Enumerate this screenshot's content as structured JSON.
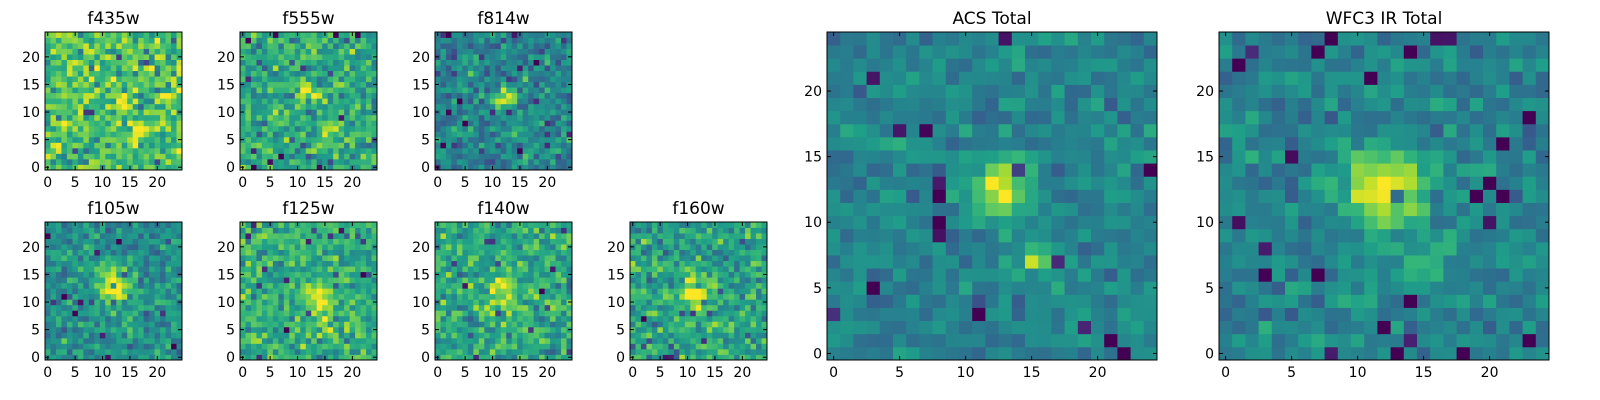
{
  "chart_data": {
    "type": "heatmap",
    "colormap": "viridis",
    "colors": {
      "viridis_stops": [
        "#440154",
        "#482878",
        "#3e4989",
        "#31688e",
        "#26828e",
        "#1f9e89",
        "#35b779",
        "#6ece58",
        "#b5de2b",
        "#fde725"
      ]
    },
    "panels": [
      {
        "title": "f435w",
        "size": "small",
        "shape": [
          25,
          25
        ],
        "xlim": [
          -0.5,
          24.5
        ],
        "ylim": [
          -0.5,
          24.5
        ],
        "xticks": [
          "0",
          "5",
          "10",
          "15",
          "20"
        ],
        "yticks": [
          "0",
          "5",
          "10",
          "15",
          "20"
        ],
        "background": 0.72,
        "noise": 0.16,
        "sources": [
          {
            "x": 13.5,
            "y": 12.5,
            "peak": 0.35,
            "sigma": 1.0
          },
          {
            "x": 17,
            "y": 7,
            "peak": 0.25,
            "sigma": 1.0
          }
        ],
        "seed": 11
      },
      {
        "title": "f555w",
        "size": "small",
        "shape": [
          25,
          25
        ],
        "xlim": [
          -0.5,
          24.5
        ],
        "ylim": [
          -0.5,
          24.5
        ],
        "xticks": [
          "0",
          "5",
          "10",
          "15",
          "20"
        ],
        "yticks": [
          "0",
          "5",
          "10",
          "15",
          "20"
        ],
        "background": 0.6,
        "noise": 0.15,
        "sources": [
          {
            "x": 12.5,
            "y": 13,
            "peak": 0.45,
            "sigma": 1.2
          },
          {
            "x": 15.5,
            "y": 7,
            "peak": 0.3,
            "sigma": 1.0
          }
        ],
        "seed": 22
      },
      {
        "title": "f814w",
        "size": "small",
        "shape": [
          25,
          25
        ],
        "xlim": [
          -0.5,
          24.5
        ],
        "ylim": [
          -0.5,
          24.5
        ],
        "xticks": [
          "0",
          "5",
          "10",
          "15",
          "20"
        ],
        "yticks": [
          "0",
          "5",
          "10",
          "15",
          "20"
        ],
        "background": 0.45,
        "noise": 0.15,
        "sources": [
          {
            "x": 12.5,
            "y": 12.5,
            "peak": 0.6,
            "sigma": 1.3
          },
          {
            "x": 15,
            "y": 7,
            "peak": 0.25,
            "sigma": 1.0
          }
        ],
        "seed": 33
      },
      {
        "title": "f105w",
        "size": "small",
        "shape": [
          25,
          25
        ],
        "xlim": [
          -0.5,
          24.5
        ],
        "ylim": [
          -0.5,
          24.5
        ],
        "xticks": [
          "0",
          "5",
          "10",
          "15",
          "20"
        ],
        "yticks": [
          "0",
          "5",
          "10",
          "15",
          "20"
        ],
        "background": 0.5,
        "noise": 0.12,
        "sources": [
          {
            "x": 12,
            "y": 13,
            "peak": 0.5,
            "sigma": 2.2
          },
          {
            "x": 15,
            "y": 7,
            "peak": 0.2,
            "sigma": 1.2
          }
        ],
        "seed": 44
      },
      {
        "title": "f125w",
        "size": "small",
        "shape": [
          25,
          25
        ],
        "xlim": [
          -0.5,
          24.5
        ],
        "ylim": [
          -0.5,
          24.5
        ],
        "xticks": [
          "0",
          "5",
          "10",
          "15",
          "20"
        ],
        "yticks": [
          "0",
          "5",
          "10",
          "15",
          "20"
        ],
        "background": 0.62,
        "noise": 0.14,
        "sources": [
          {
            "x": 14,
            "y": 10.5,
            "peak": 0.4,
            "sigma": 2.0
          },
          {
            "x": 15,
            "y": 6,
            "peak": 0.2,
            "sigma": 1.2
          }
        ],
        "seed": 55
      },
      {
        "title": "f140w",
        "size": "small",
        "shape": [
          25,
          25
        ],
        "xlim": [
          -0.5,
          24.5
        ],
        "ylim": [
          -0.5,
          24.5
        ],
        "xticks": [
          "0",
          "5",
          "10",
          "15",
          "20"
        ],
        "yticks": [
          "0",
          "5",
          "10",
          "15",
          "20"
        ],
        "background": 0.6,
        "noise": 0.14,
        "sources": [
          {
            "x": 12,
            "y": 12,
            "peak": 0.3,
            "sigma": 2.0
          }
        ],
        "seed": 66
      },
      {
        "title": "f160w",
        "size": "small",
        "shape": [
          25,
          25
        ],
        "xlim": [
          -0.5,
          24.5
        ],
        "ylim": [
          -0.5,
          24.5
        ],
        "xticks": [
          "0",
          "5",
          "10",
          "15",
          "20"
        ],
        "yticks": [
          "0",
          "5",
          "10",
          "15",
          "20"
        ],
        "background": 0.58,
        "noise": 0.15,
        "sources": [
          {
            "x": 11.5,
            "y": 12,
            "peak": 0.35,
            "sigma": 2.0
          }
        ],
        "seed": 77
      },
      {
        "title": "ACS Total",
        "size": "large",
        "shape": [
          25,
          25
        ],
        "xlim": [
          -0.5,
          24.5
        ],
        "ylim": [
          -0.5,
          24.5
        ],
        "xticks": [
          "0",
          "5",
          "10",
          "15",
          "20"
        ],
        "yticks": [
          "0",
          "5",
          "10",
          "15",
          "20"
        ],
        "background": 0.45,
        "noise": 0.09,
        "sources": [
          {
            "x": 12.7,
            "y": 12.6,
            "peak": 0.55,
            "sigma": 1.4
          },
          {
            "x": 15.3,
            "y": 7.2,
            "peak": 0.4,
            "sigma": 0.9
          }
        ],
        "seed": 88
      },
      {
        "title": "WFC3 IR Total",
        "size": "large",
        "shape": [
          25,
          25
        ],
        "xlim": [
          -0.5,
          24.5
        ],
        "ylim": [
          -0.5,
          24.5
        ],
        "xticks": [
          "0",
          "5",
          "10",
          "15",
          "20"
        ],
        "yticks": [
          "0",
          "5",
          "10",
          "15",
          "20"
        ],
        "background": 0.45,
        "noise": 0.09,
        "sources": [
          {
            "x": 12,
            "y": 12.5,
            "peak": 0.55,
            "sigma": 2.0
          },
          {
            "x": 15,
            "y": 7,
            "peak": 0.25,
            "sigma": 1.3
          }
        ],
        "seed": 99
      }
    ]
  }
}
